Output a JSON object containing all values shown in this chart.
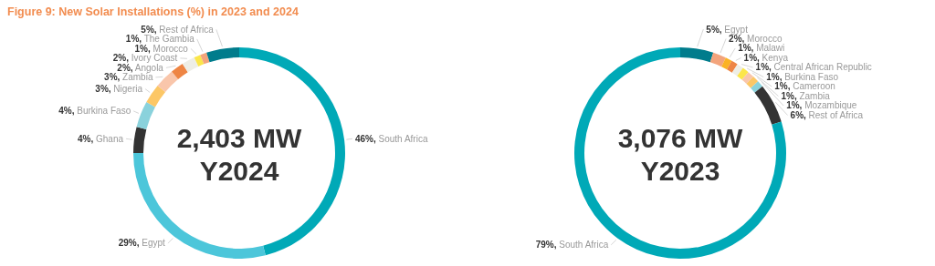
{
  "chart_data": [
    {
      "type": "donut",
      "title": "Figure 9: New Solar Installations (%) in 2023 and 2024",
      "annotations": [
        "2,403 MW",
        "Y2024"
      ],
      "categories": [
        "South Africa",
        "Egypt",
        "Ghana",
        "Burkina Faso",
        "Nigeria",
        "Zambia",
        "Angola",
        "Ivory Coast",
        "Morocco",
        "The Gambia",
        "Rest of Africa"
      ],
      "values": [
        46,
        29,
        4,
        4,
        3,
        3,
        2,
        2,
        1,
        1,
        5
      ],
      "value_labels": [
        "46%,",
        "29%,",
        "4%,",
        "4%,",
        "3%,",
        "3%,",
        "2%,",
        "2%,",
        "1%,",
        "1%,",
        "5%,"
      ],
      "colors": [
        "#00a9b7",
        "#4cc6da",
        "#333333",
        "#8ad2dc",
        "#fcc766",
        "#f9c6ab",
        "#ee8544",
        "#eeeee6",
        "#fbe64a",
        "#f3a47c",
        "#007c8c"
      ]
    },
    {
      "type": "donut",
      "annotations": [
        "3,076 MW",
        "Y2023"
      ],
      "categories": [
        "Egypt",
        "Morocco",
        "Malawi",
        "Kenya",
        "Central African Republic",
        "Burkina Faso",
        "Cameroon",
        "Zambia",
        "Mozambique",
        "Rest of Africa",
        "South Africa"
      ],
      "values": [
        5,
        2,
        1,
        1,
        1,
        1,
        1,
        1,
        1,
        6,
        79
      ],
      "value_labels": [
        "5%,",
        "2%,",
        "1%,",
        "1%,",
        "1%,",
        "1%,",
        "1%,",
        "1%,",
        "1%,",
        "6%,",
        "79%,"
      ],
      "colors": [
        "#007c8c",
        "#f3a47c",
        "#fbb224",
        "#ee8544",
        "#eeeee6",
        "#fbe64a",
        "#f9c6ab",
        "#fcc766",
        "#8ad2dc",
        "#333333",
        "#00a9b7"
      ]
    }
  ]
}
